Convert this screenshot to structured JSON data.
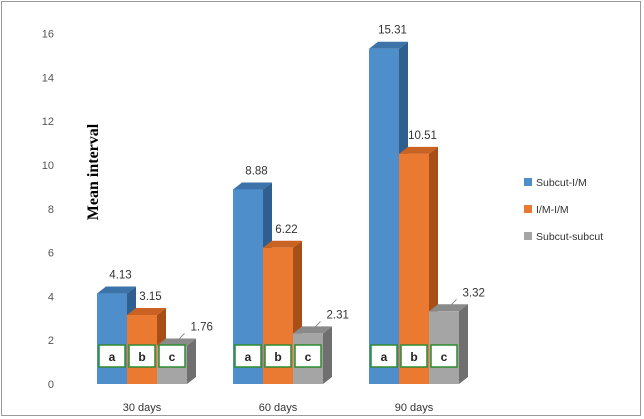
{
  "chart_data": {
    "type": "bar",
    "style": "3d-clustered-column",
    "ylabel": "Mean interval",
    "ylim": [
      0,
      16
    ],
    "yticks": [
      0,
      2,
      4,
      6,
      8,
      10,
      12,
      14,
      16
    ],
    "categories": [
      "30 days",
      "60 days",
      "90 days"
    ],
    "series": [
      {
        "name": "Subcut-I/M",
        "color": "#4e8fcb",
        "side_color": "#2e5f8f",
        "top_color": "#3c73a8",
        "values": [
          4.13,
          8.88,
          15.31
        ],
        "labels": [
          "4.13",
          "8.88",
          "15.31"
        ],
        "box_letter": "a"
      },
      {
        "name": "I/M-I/M",
        "color": "#ea7a32",
        "side_color": "#a84f17",
        "top_color": "#c96222",
        "values": [
          3.15,
          6.22,
          10.51
        ],
        "labels": [
          "3.15",
          "6.22",
          "10.51"
        ],
        "box_letter": "b"
      },
      {
        "name": "Subcut-subcut",
        "color": "#a5a5a5",
        "side_color": "#6f6f6f",
        "top_color": "#8a8a8a",
        "values": [
          1.76,
          2.31,
          3.32
        ],
        "labels": [
          "1.76",
          "2.31",
          "3.32"
        ],
        "box_letter": "c"
      }
    ],
    "grid": false,
    "legend_position": "right",
    "annotation_box_border_color": "#2e8b2e"
  }
}
